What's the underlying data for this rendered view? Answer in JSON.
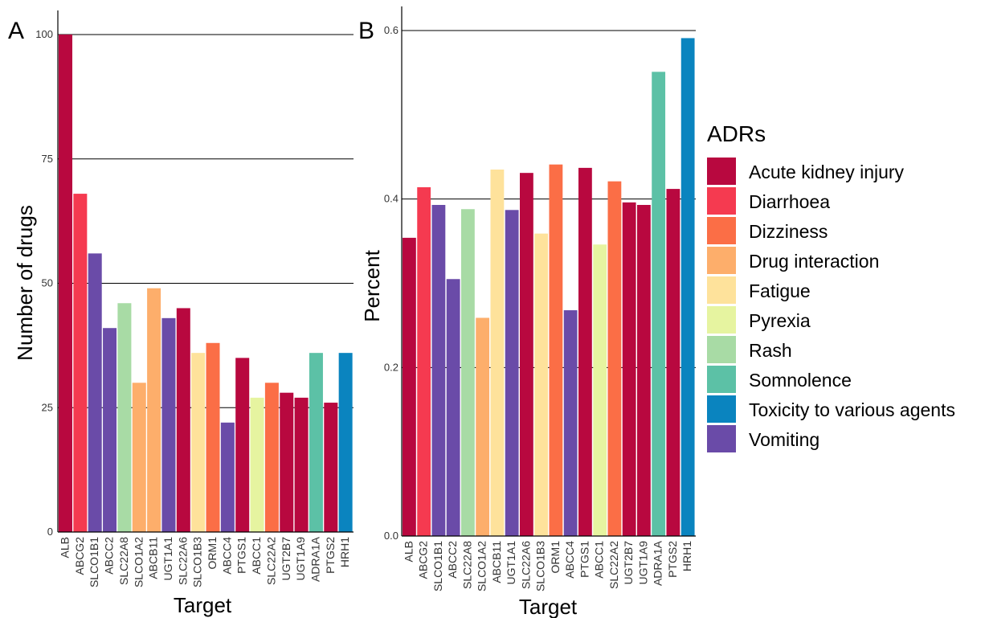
{
  "legend": {
    "title": "ADRs",
    "items": [
      {
        "label": "Acute kidney injury",
        "color": "#B8083F"
      },
      {
        "label": "Diarrhoea",
        "color": "#F53A50"
      },
      {
        "label": "Dizziness",
        "color": "#FB6E46"
      },
      {
        "label": "Drug interaction",
        "color": "#FDAE6B"
      },
      {
        "label": "Fatigue",
        "color": "#FEE29B"
      },
      {
        "label": "Pyrexia",
        "color": "#E6F4A0"
      },
      {
        "label": "Rash",
        "color": "#A8DBA5"
      },
      {
        "label": "Somnolence",
        "color": "#5CC1A6"
      },
      {
        "label": "Toxicity to various agents",
        "color": "#0A84BF"
      },
      {
        "label": "Vomiting",
        "color": "#6A4BA8"
      }
    ]
  },
  "chart_data": [
    {
      "type": "bar",
      "panel": "A",
      "xlabel": "Target",
      "ylabel": "Number of drugs",
      "ylim": [
        0,
        100
      ],
      "yticks": [
        "0",
        "25",
        "50",
        "75",
        "100"
      ],
      "grid": true,
      "categories": [
        "ALB",
        "ABCG2",
        "SLCO1B1",
        "ABCC2",
        "SLC22A8",
        "SLCO1A2",
        "ABCB11",
        "UGT1A1",
        "SLC22A6",
        "SLCO1B3",
        "ORM1",
        "ABCC4",
        "PTGS1",
        "ABCC1",
        "SLC22A2",
        "UGT2B7",
        "UGT1A9",
        "ADRA1A",
        "PTGS2",
        "HRH1"
      ],
      "values": [
        100,
        68,
        56,
        41,
        46,
        30,
        49,
        43,
        45,
        36,
        38,
        22,
        35,
        27,
        30,
        28,
        27,
        36,
        26,
        36
      ],
      "adr": [
        "Acute kidney injury",
        "Diarrhoea",
        "Vomiting",
        "Vomiting",
        "Rash",
        "Drug interaction",
        "Drug interaction",
        "Vomiting",
        "Acute kidney injury",
        "Fatigue",
        "Dizziness",
        "Vomiting",
        "Acute kidney injury",
        "Pyrexia",
        "Dizziness",
        "Acute kidney injury",
        "Acute kidney injury",
        "Somnolence",
        "Acute kidney injury",
        "Toxicity to various agents"
      ]
    },
    {
      "type": "bar",
      "panel": "B",
      "xlabel": "Target",
      "ylabel": "Percent",
      "ylim": [
        0,
        0.6
      ],
      "yticks": [
        "0.0",
        "0.2",
        "0.4",
        "0.6"
      ],
      "grid": true,
      "categories": [
        "ALB",
        "ABCG2",
        "SLCO1B1",
        "ABCC2",
        "SLC22A8",
        "SLCO1A2",
        "ABCB11",
        "UGT1A1",
        "SLC22A6",
        "SLCO1B3",
        "ORM1",
        "ABCC4",
        "PTGS1",
        "ABCC1",
        "SLC22A2",
        "UGT2B7",
        "UGT1A9",
        "ADRA1A",
        "PTGS2",
        "HRH1"
      ],
      "values": [
        0.354,
        0.414,
        0.393,
        0.305,
        0.388,
        0.259,
        0.435,
        0.387,
        0.431,
        0.359,
        0.441,
        0.268,
        0.437,
        0.346,
        0.421,
        0.396,
        0.393,
        0.551,
        0.412,
        0.591
      ],
      "adr": [
        "Acute kidney injury",
        "Diarrhoea",
        "Vomiting",
        "Vomiting",
        "Rash",
        "Drug interaction",
        "Fatigue",
        "Vomiting",
        "Acute kidney injury",
        "Fatigue",
        "Dizziness",
        "Vomiting",
        "Acute kidney injury",
        "Pyrexia",
        "Dizziness",
        "Acute kidney injury",
        "Acute kidney injury",
        "Somnolence",
        "Acute kidney injury",
        "Toxicity to various agents"
      ]
    }
  ]
}
